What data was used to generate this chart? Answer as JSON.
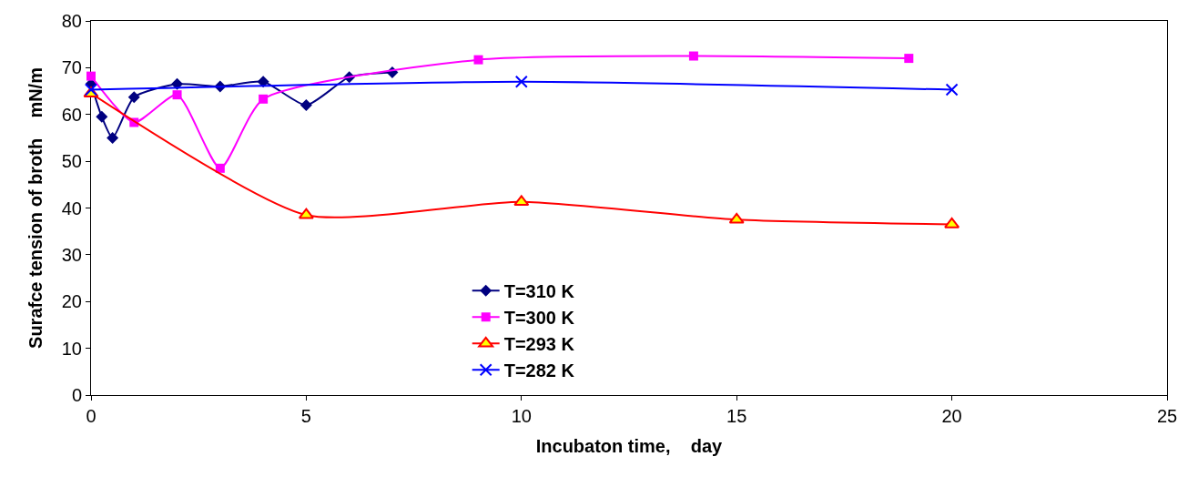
{
  "chart_data": {
    "type": "line",
    "xlabel": "Incubaton time,    day",
    "ylabel": "Surafce tension of broth    mN/m",
    "xlim": [
      0,
      25
    ],
    "xticks": [
      0,
      5,
      10,
      15,
      20,
      25
    ],
    "ylim": [
      0,
      80
    ],
    "yticks": [
      0,
      10,
      20,
      30,
      40,
      50,
      60,
      70,
      80
    ],
    "legend": "bottom",
    "series": [
      {
        "name": "T=310 K",
        "color": "#000080",
        "marker": "diamond",
        "x": [
          0,
          0.25,
          0.5,
          1,
          2,
          3,
          4,
          5,
          6,
          7
        ],
        "values": [
          66.5,
          59.5,
          55,
          63.7,
          66.5,
          66,
          67,
          62,
          68,
          69
        ]
      },
      {
        "name": "T=300 K",
        "color": "#ff00ff",
        "marker": "square",
        "x": [
          0,
          1,
          2,
          3,
          4,
          9,
          14,
          19
        ],
        "values": [
          68.2,
          58.3,
          64.2,
          48.5,
          63.3,
          71.7,
          72.5,
          72
        ]
      },
      {
        "name": "T=293 K",
        "color": "#ff0000",
        "marker": "triangle",
        "x": [
          0,
          5,
          10,
          15,
          20
        ],
        "values": [
          64.5,
          38.5,
          41.3,
          37.5,
          36.5
        ]
      },
      {
        "name": "T=282 K",
        "color": "#0000ff",
        "marker": "cross",
        "x": [
          0,
          10,
          20
        ],
        "values": [
          65.3,
          67,
          65.3
        ]
      }
    ]
  }
}
